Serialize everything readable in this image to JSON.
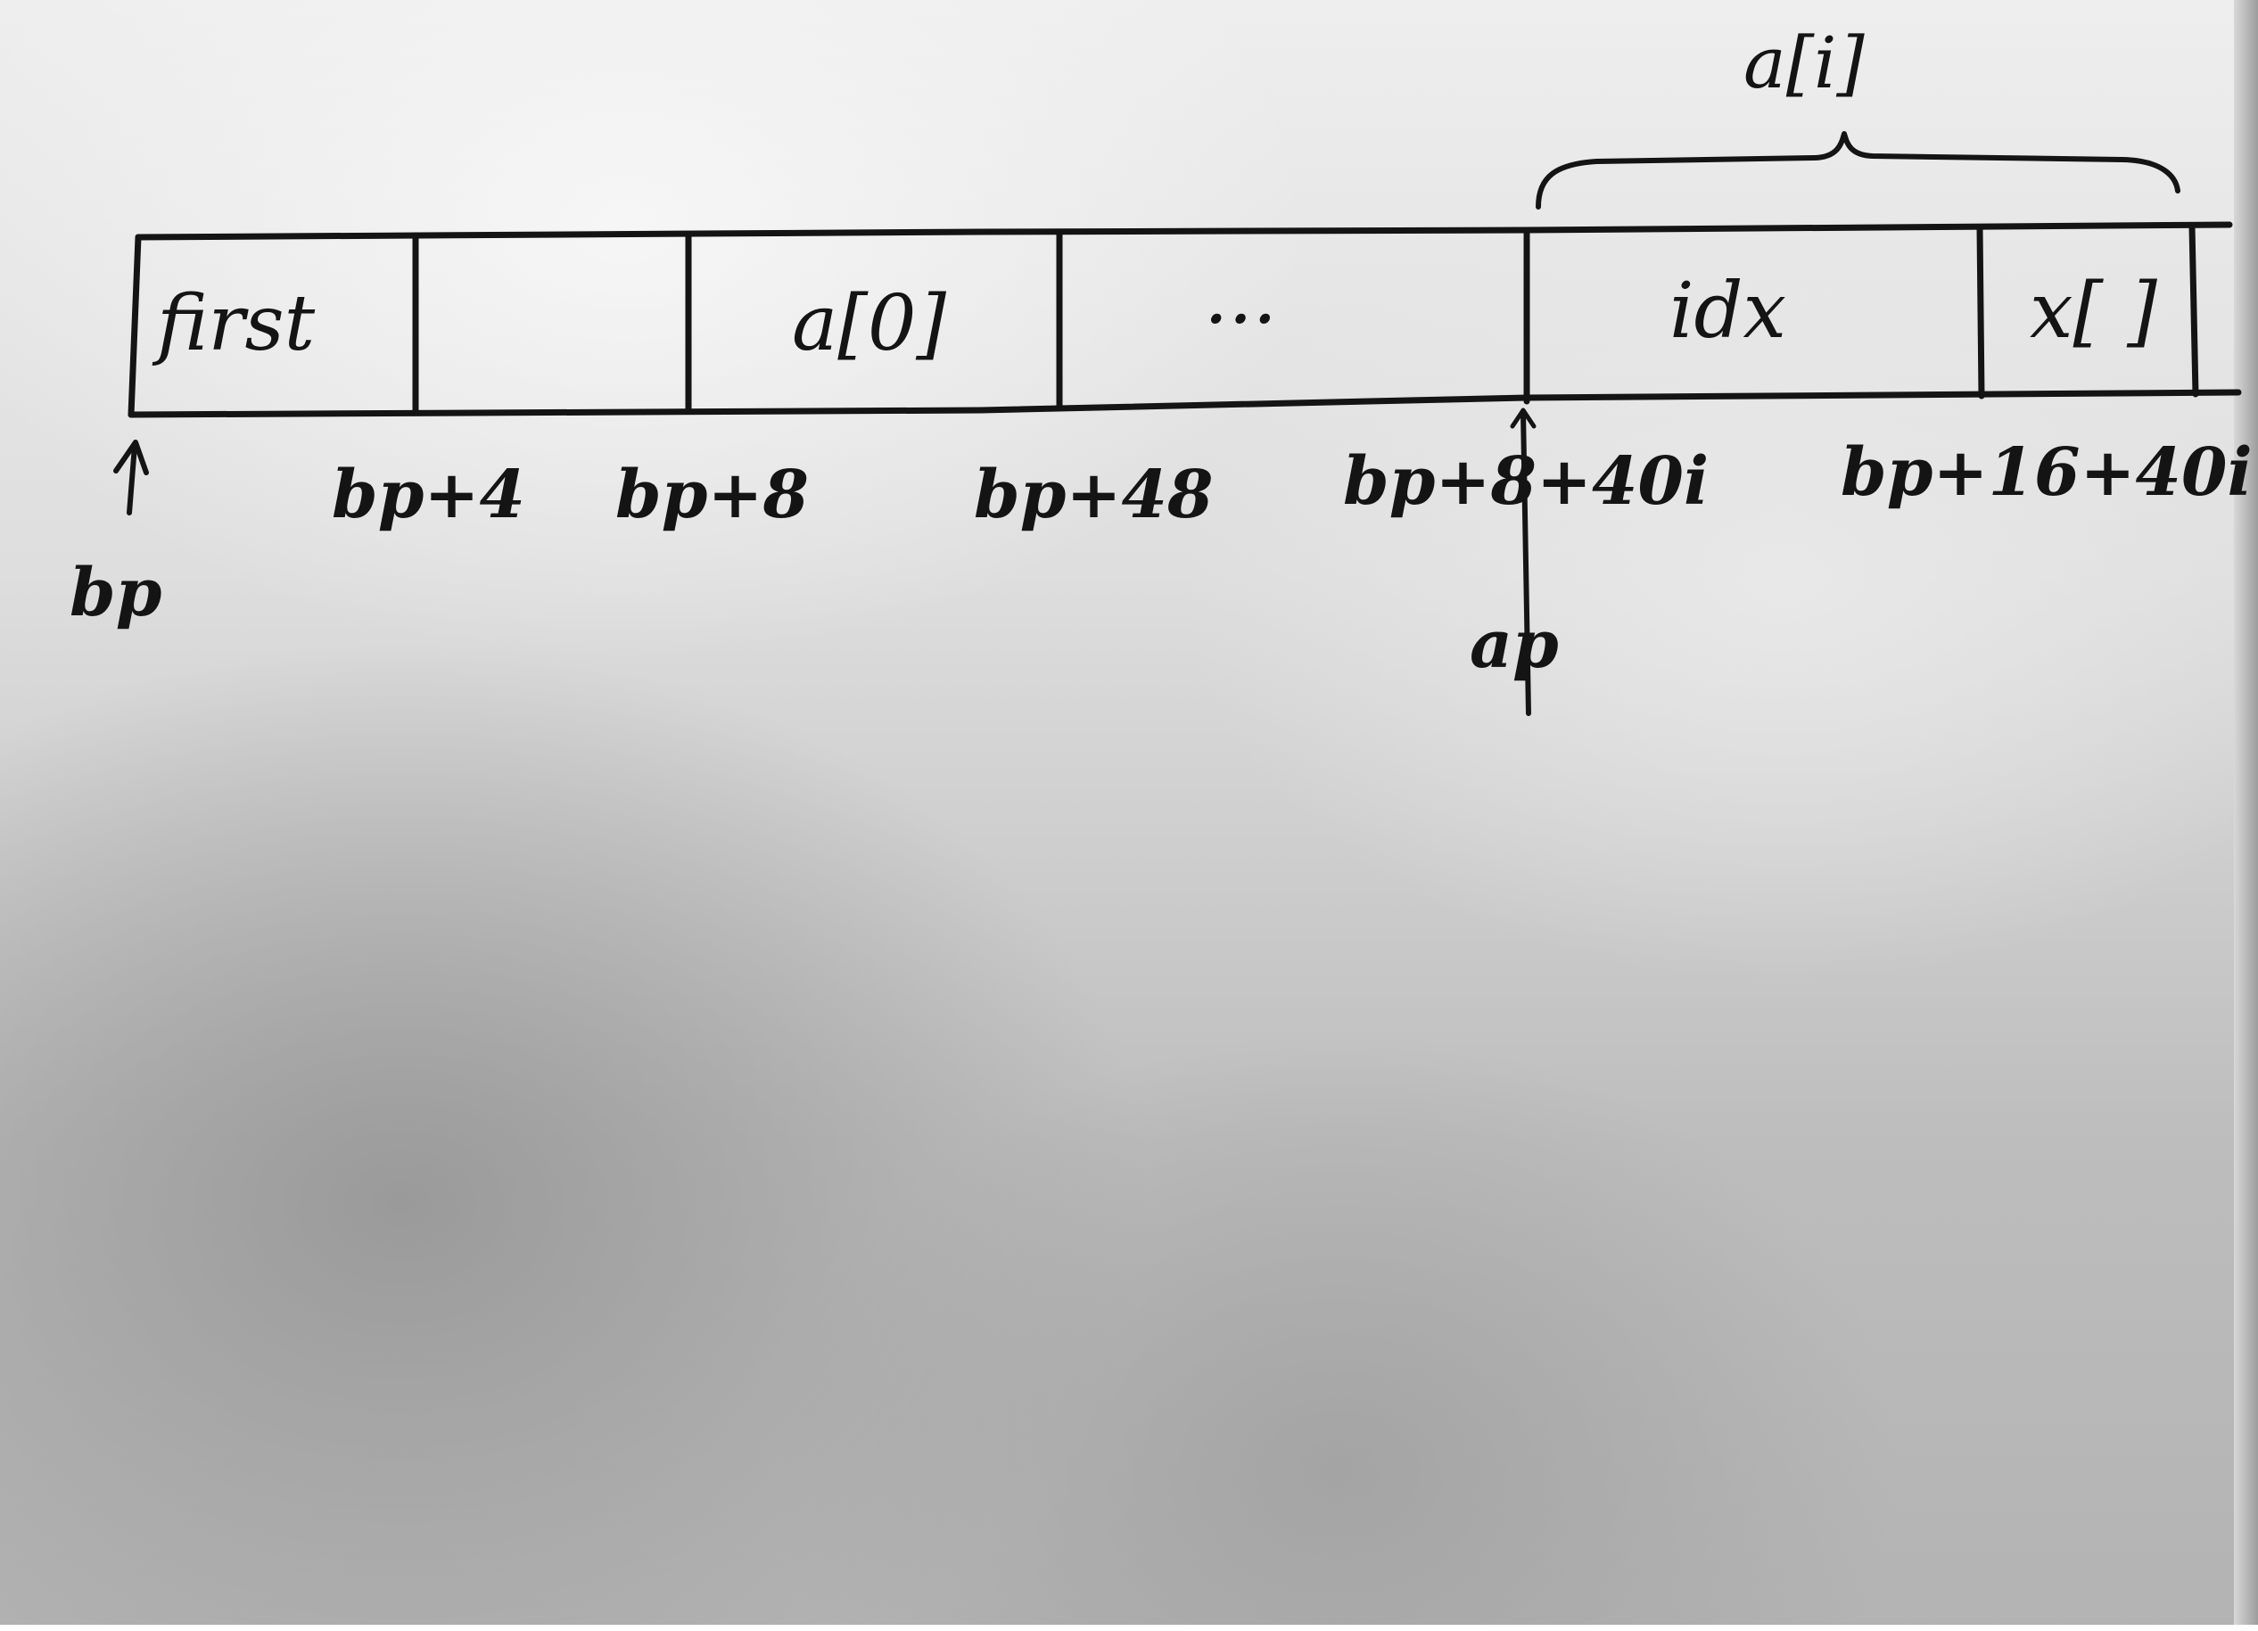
{
  "cells": [
    {
      "label": "first"
    },
    {
      "label": ""
    },
    {
      "label": "a[0]"
    },
    {
      "label": "..."
    },
    {
      "label": "idx"
    },
    {
      "label": "x[ ]"
    }
  ],
  "brace_label": "a[i]",
  "addresses": {
    "bp": "bp",
    "bp_4": "bp+4",
    "bp_8": "bp+8",
    "bp_48": "bp+48",
    "bp_8_40i": "bp+8+40i",
    "bp_16_40i": "bp+16+40i",
    "ap": "ap"
  }
}
